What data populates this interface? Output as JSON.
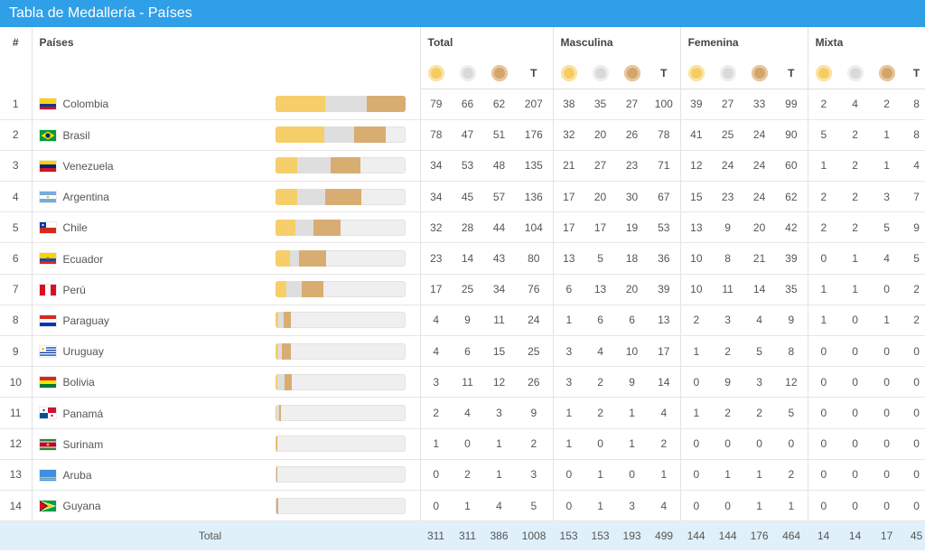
{
  "page": {
    "title": "Tabla de Medallería - Países"
  },
  "table": {
    "col_rank": "#",
    "col_country": "Países",
    "groups": [
      "Total",
      "Masculina",
      "Femenina",
      "Mixta"
    ],
    "total_col_label": "T",
    "footer_label": "Total",
    "footer_values": [
      311,
      311,
      386,
      1008,
      153,
      153,
      193,
      499,
      144,
      144,
      176,
      464,
      14,
      14,
      17,
      45
    ]
  },
  "rows": [
    {
      "rank": 1,
      "country": "Colombia",
      "flag": "flag-colombia",
      "values": [
        79,
        66,
        62,
        207,
        38,
        35,
        27,
        100,
        39,
        27,
        33,
        99,
        2,
        4,
        2,
        8
      ]
    },
    {
      "rank": 2,
      "country": "Brasil",
      "flag": "flag-brazil",
      "values": [
        78,
        47,
        51,
        176,
        32,
        20,
        26,
        78,
        41,
        25,
        24,
        90,
        5,
        2,
        1,
        8
      ]
    },
    {
      "rank": 3,
      "country": "Venezuela",
      "flag": "flag-venezuela",
      "values": [
        34,
        53,
        48,
        135,
        21,
        27,
        23,
        71,
        12,
        24,
        24,
        60,
        1,
        2,
        1,
        4
      ]
    },
    {
      "rank": 4,
      "country": "Argentina",
      "flag": "flag-argentina",
      "values": [
        34,
        45,
        57,
        136,
        17,
        20,
        30,
        67,
        15,
        23,
        24,
        62,
        2,
        2,
        3,
        7
      ]
    },
    {
      "rank": 5,
      "country": "Chile",
      "flag": "flag-chile",
      "values": [
        32,
        28,
        44,
        104,
        17,
        17,
        19,
        53,
        13,
        9,
        20,
        42,
        2,
        2,
        5,
        9
      ]
    },
    {
      "rank": 6,
      "country": "Ecuador",
      "flag": "flag-ecuador",
      "values": [
        23,
        14,
        43,
        80,
        13,
        5,
        18,
        36,
        10,
        8,
        21,
        39,
        0,
        1,
        4,
        5
      ]
    },
    {
      "rank": 7,
      "country": "Perú",
      "flag": "flag-peru",
      "values": [
        17,
        25,
        34,
        76,
        6,
        13,
        20,
        39,
        10,
        11,
        14,
        35,
        1,
        1,
        0,
        2
      ]
    },
    {
      "rank": 8,
      "country": "Paraguay",
      "flag": "flag-paraguay",
      "values": [
        4,
        9,
        11,
        24,
        1,
        6,
        6,
        13,
        2,
        3,
        4,
        9,
        1,
        0,
        1,
        2
      ]
    },
    {
      "rank": 9,
      "country": "Uruguay",
      "flag": "flag-uruguay",
      "values": [
        4,
        6,
        15,
        25,
        3,
        4,
        10,
        17,
        1,
        2,
        5,
        8,
        0,
        0,
        0,
        0
      ]
    },
    {
      "rank": 10,
      "country": "Bolivia",
      "flag": "flag-bolivia",
      "values": [
        3,
        11,
        12,
        26,
        3,
        2,
        9,
        14,
        0,
        9,
        3,
        12,
        0,
        0,
        0,
        0
      ]
    },
    {
      "rank": 11,
      "country": "Panamá",
      "flag": "flag-panama",
      "values": [
        2,
        4,
        3,
        9,
        1,
        2,
        1,
        4,
        1,
        2,
        2,
        5,
        0,
        0,
        0,
        0
      ]
    },
    {
      "rank": 12,
      "country": "Surinam",
      "flag": "flag-suriname",
      "values": [
        1,
        0,
        1,
        2,
        1,
        0,
        1,
        2,
        0,
        0,
        0,
        0,
        0,
        0,
        0,
        0
      ]
    },
    {
      "rank": 13,
      "country": "Aruba",
      "flag": "flag-aruba",
      "values": [
        0,
        2,
        1,
        3,
        0,
        1,
        0,
        1,
        0,
        1,
        1,
        2,
        0,
        0,
        0,
        0
      ]
    },
    {
      "rank": 14,
      "country": "Guyana",
      "flag": "flag-guyana",
      "values": [
        0,
        1,
        4,
        5,
        0,
        1,
        3,
        4,
        0,
        0,
        1,
        1,
        0,
        0,
        0,
        0
      ]
    }
  ],
  "bar_scale_max": 207,
  "colors": {
    "header_bg": "#2f9fe7",
    "gold": "#f6ce6a",
    "silver": "#dedede",
    "bronze": "#d8ad72",
    "footer_bg": "#dff0fa"
  }
}
